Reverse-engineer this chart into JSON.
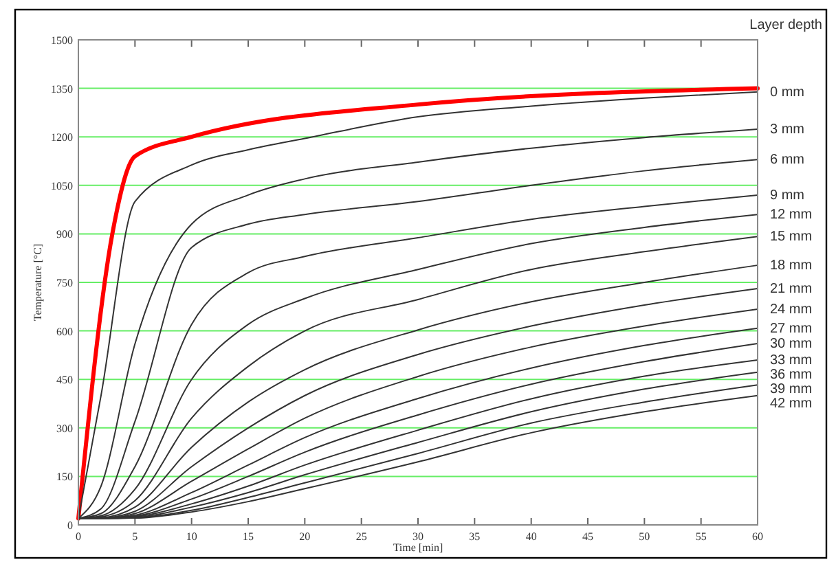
{
  "chart_data": {
    "type": "line",
    "xlabel": "Time [min]",
    "ylabel": "Temperature [°C]",
    "legend_title": "Layer depth",
    "x": [
      0,
      2,
      5,
      10,
      15,
      20,
      30,
      40,
      50,
      60
    ],
    "xlim": [
      0,
      60
    ],
    "xticks": [
      0,
      5,
      10,
      15,
      20,
      25,
      30,
      35,
      40,
      45,
      50,
      55,
      60
    ],
    "ylim": [
      0,
      1500
    ],
    "yticks": [
      0,
      150,
      300,
      450,
      600,
      750,
      900,
      1050,
      1200,
      1350,
      1500
    ],
    "grid": "y",
    "marker": "none",
    "line_style": "solid",
    "series": [
      {
        "color": "#ff0000",
        "x": [
          0,
          3,
          5,
          10,
          30,
          60
        ],
        "values": [
          20,
          900,
          1140,
          1200,
          1300,
          1350
        ]
      },
      {
        "name": "0 mm",
        "color": "#333333",
        "values": [
          20,
          400,
          1000,
          1113,
          1160,
          1195,
          1262,
          1295,
          1320,
          1339
        ]
      },
      {
        "name": "3 mm",
        "color": "#333333",
        "values": [
          20,
          120,
          560,
          930,
          1020,
          1070,
          1122,
          1165,
          1198,
          1224
        ]
      },
      {
        "name": "6 mm",
        "color": "#333333",
        "values": [
          20,
          50,
          320,
          858,
          930,
          960,
          1000,
          1050,
          1095,
          1130
        ]
      },
      {
        "name": "9 mm",
        "color": "#333333",
        "values": [
          20,
          35,
          180,
          620,
          780,
          830,
          888,
          945,
          985,
          1020
        ]
      },
      {
        "name": "12 mm",
        "color": "#333333",
        "values": [
          20,
          28,
          110,
          450,
          620,
          700,
          790,
          870,
          920,
          960
        ]
      },
      {
        "name": "15 mm",
        "color": "#333333",
        "values": [
          20,
          25,
          75,
          330,
          490,
          600,
          697,
          790,
          845,
          892
        ]
      },
      {
        "name": "18 mm",
        "color": "#333333",
        "values": [
          20,
          22,
          55,
          240,
          380,
          480,
          603,
          690,
          750,
          803
        ]
      },
      {
        "name": "21 mm",
        "color": "#333333",
        "values": [
          20,
          21,
          42,
          180,
          300,
          400,
          527,
          615,
          680,
          731
        ]
      },
      {
        "name": "24 mm",
        "color": "#333333",
        "values": [
          20,
          20,
          35,
          135,
          235,
          330,
          459,
          550,
          615,
          667
        ]
      },
      {
        "name": "27 mm",
        "color": "#333333",
        "values": [
          20,
          20,
          30,
          100,
          185,
          270,
          391,
          485,
          555,
          608
        ]
      },
      {
        "name": "30 mm",
        "color": "#333333",
        "values": [
          20,
          20,
          27,
          80,
          150,
          225,
          340,
          435,
          505,
          561
        ]
      },
      {
        "name": "33 mm",
        "color": "#333333",
        "values": [
          20,
          20,
          25,
          65,
          120,
          185,
          293,
          390,
          460,
          510
        ]
      },
      {
        "name": "36 mm",
        "color": "#333333",
        "values": [
          20,
          20,
          23,
          55,
          100,
          155,
          255,
          350,
          420,
          472
        ]
      },
      {
        "name": "39 mm",
        "color": "#333333",
        "values": [
          20,
          20,
          22,
          45,
          85,
          130,
          221,
          315,
          380,
          433
        ]
      },
      {
        "name": "42 mm",
        "color": "#333333",
        "values": [
          20,
          20,
          21,
          40,
          72,
          112,
          195,
          285,
          350,
          400
        ]
      }
    ]
  }
}
